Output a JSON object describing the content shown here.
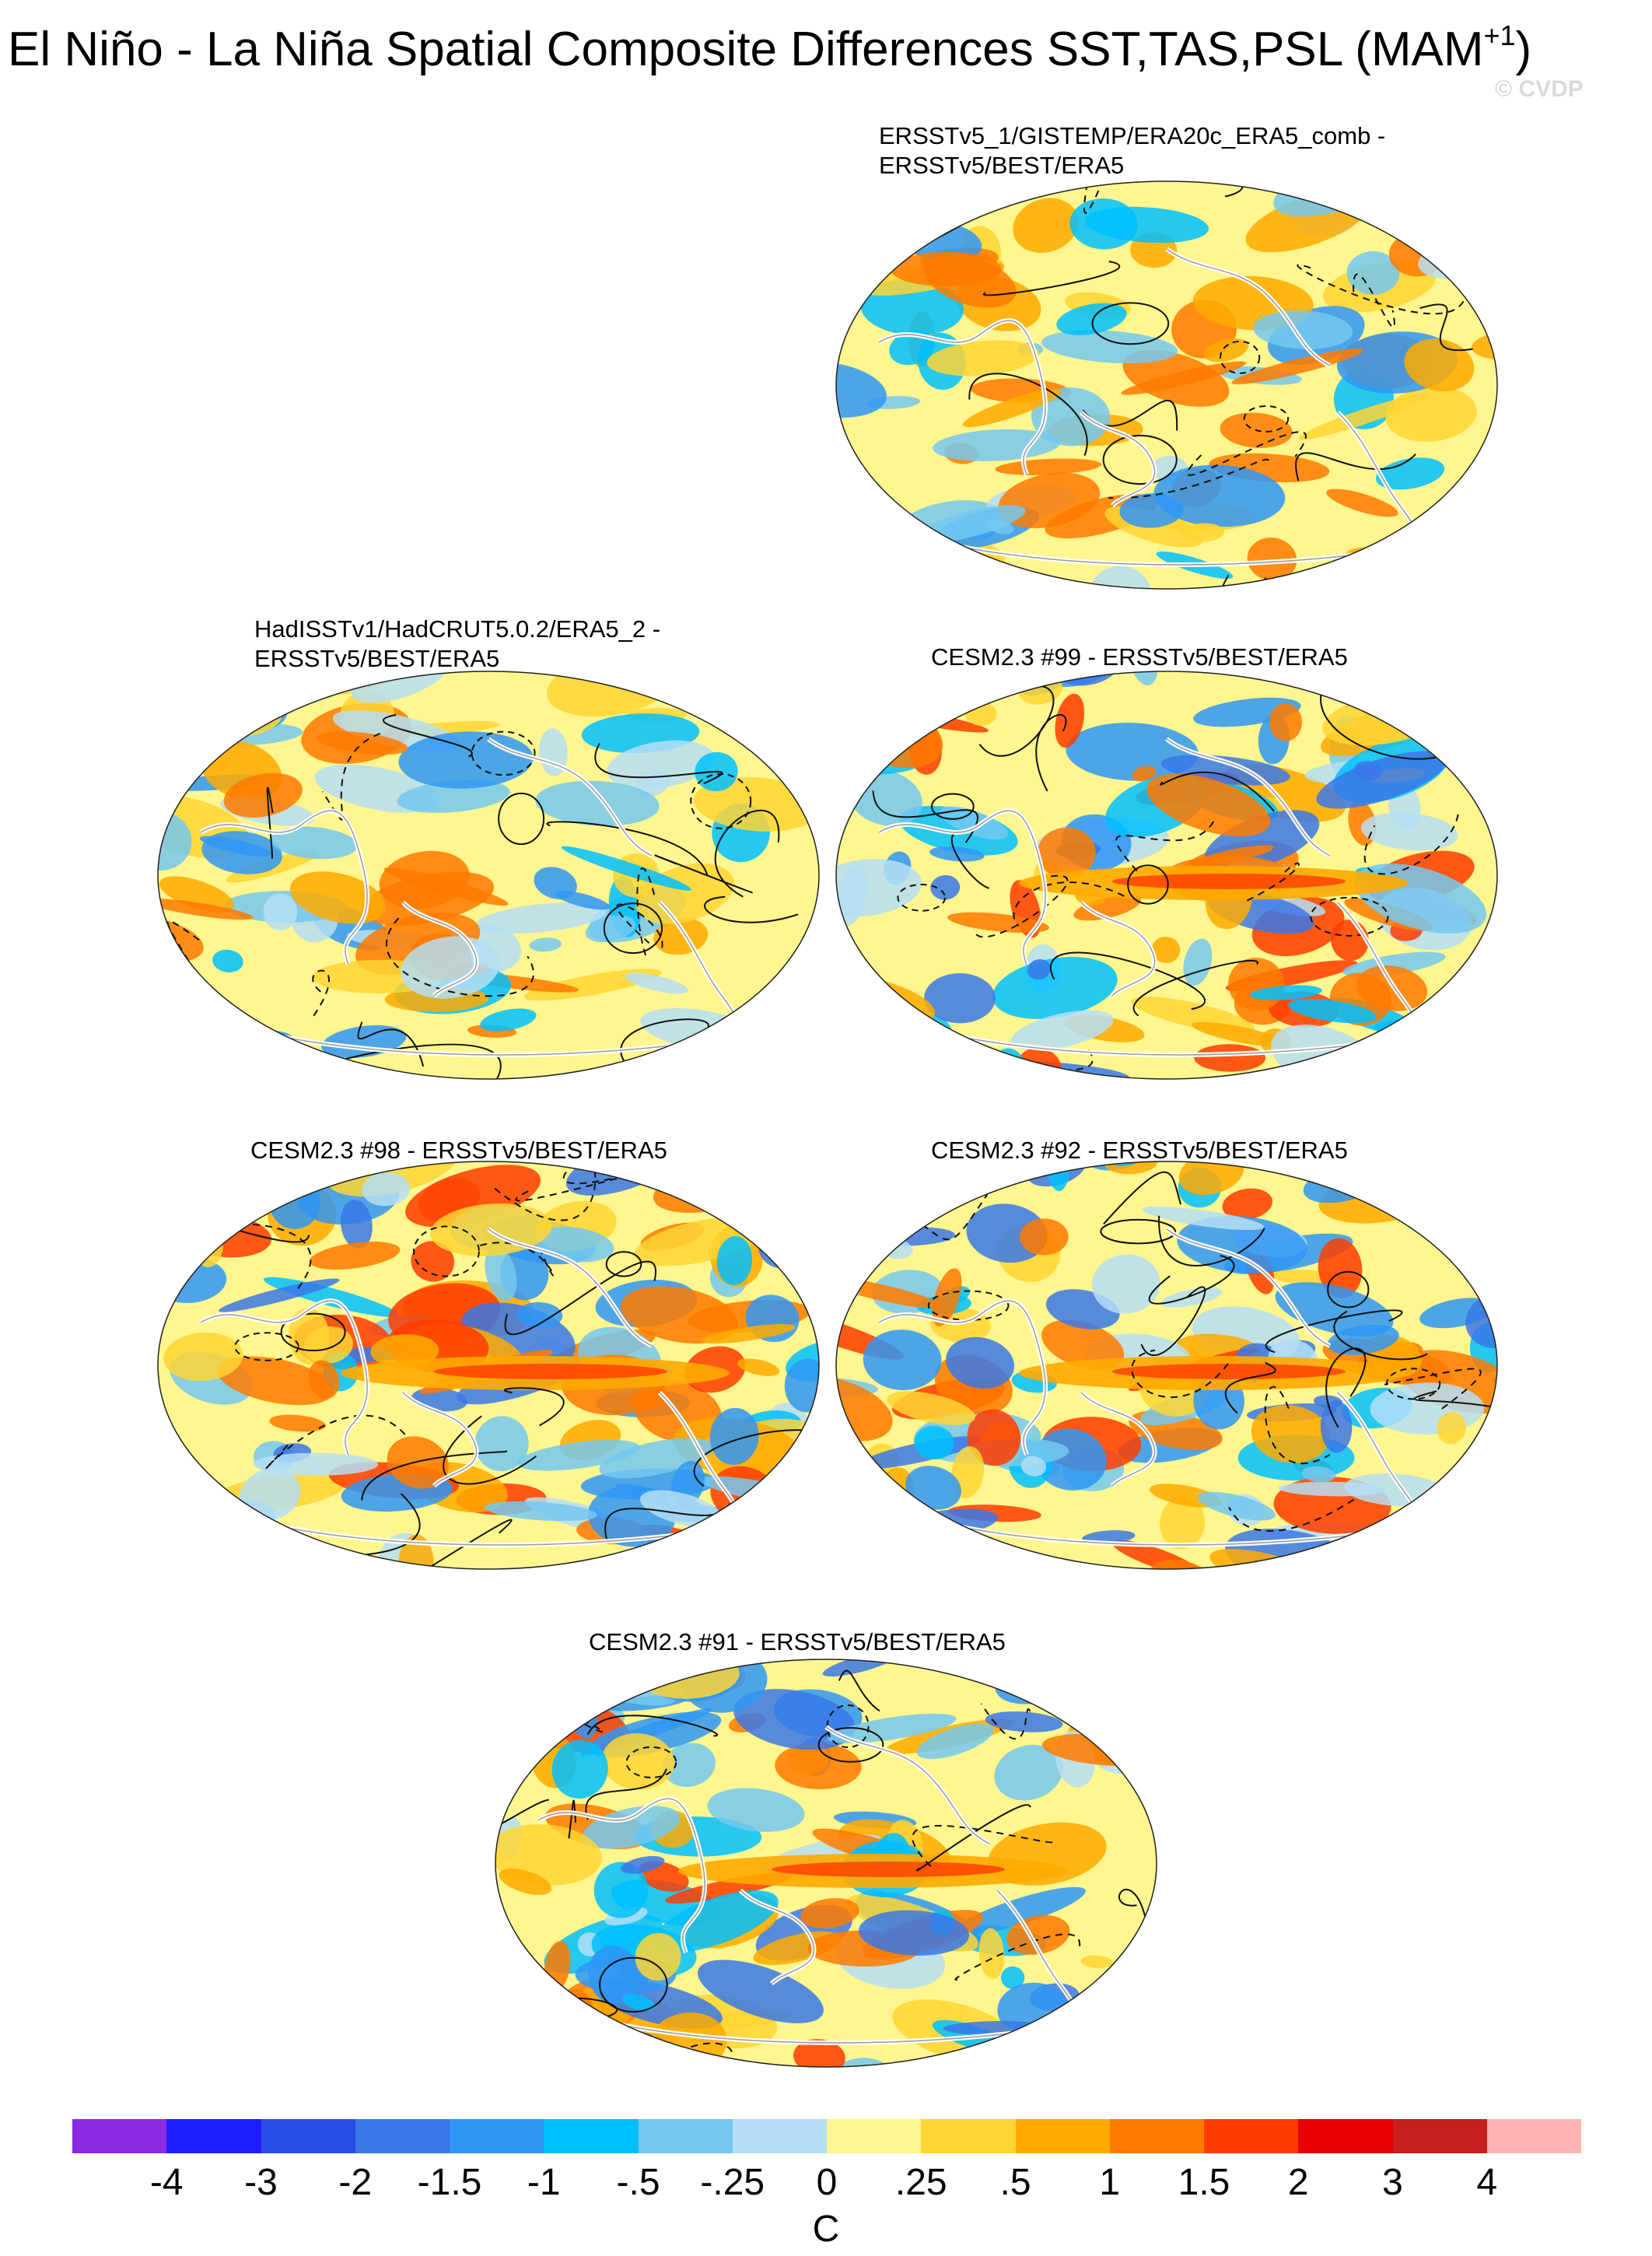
{
  "figure": {
    "title_main": "El Niño - La Niña Spatial Composite Differences SST,TAS,PSL (MAM",
    "title_sup": "+1",
    "title_close": ")",
    "watermark": "© CVDP"
  },
  "panels": [
    {
      "id": "p1",
      "title_lines": [
        "ERSSTv5_1/GISTEMP/ERA20c_ERA5_comb -",
        "ERSSTv5/BEST/ERA5"
      ]
    },
    {
      "id": "p2",
      "title_lines": [
        "HadISSTv1/HadCRUT5.0.2/ERA5_2 -",
        "ERSSTv5/BEST/ERA5"
      ]
    },
    {
      "id": "p3",
      "title_lines": [
        "CESM2.3 #99 - ERSSTv5/BEST/ERA5"
      ]
    },
    {
      "id": "p4",
      "title_lines": [
        "CESM2.3 #98 - ERSSTv5/BEST/ERA5"
      ]
    },
    {
      "id": "p5",
      "title_lines": [
        "CESM2.3 #92 - ERSSTv5/BEST/ERA5"
      ]
    },
    {
      "id": "p6",
      "title_lines": [
        "CESM2.3 #91 - ERSSTv5/BEST/ERA5"
      ]
    }
  ],
  "colorbar": {
    "units": "C",
    "labels": [
      "-4",
      "-3",
      "-2",
      "-1.5",
      "-1",
      "-.5",
      "-.25",
      "0",
      ".25",
      ".5",
      "1",
      "1.5",
      "2",
      "3",
      "4"
    ],
    "colors": [
      "#8a2be2",
      "#1e1eff",
      "#2a4fe6",
      "#3a78e8",
      "#2f96f5",
      "#00bfff",
      "#74c8f0",
      "#b5def5",
      "#fff68f",
      "#ffd534",
      "#ffaa00",
      "#ff7a00",
      "#ff3c00",
      "#e60000",
      "#c8201e",
      "#ffb4b4"
    ]
  }
}
